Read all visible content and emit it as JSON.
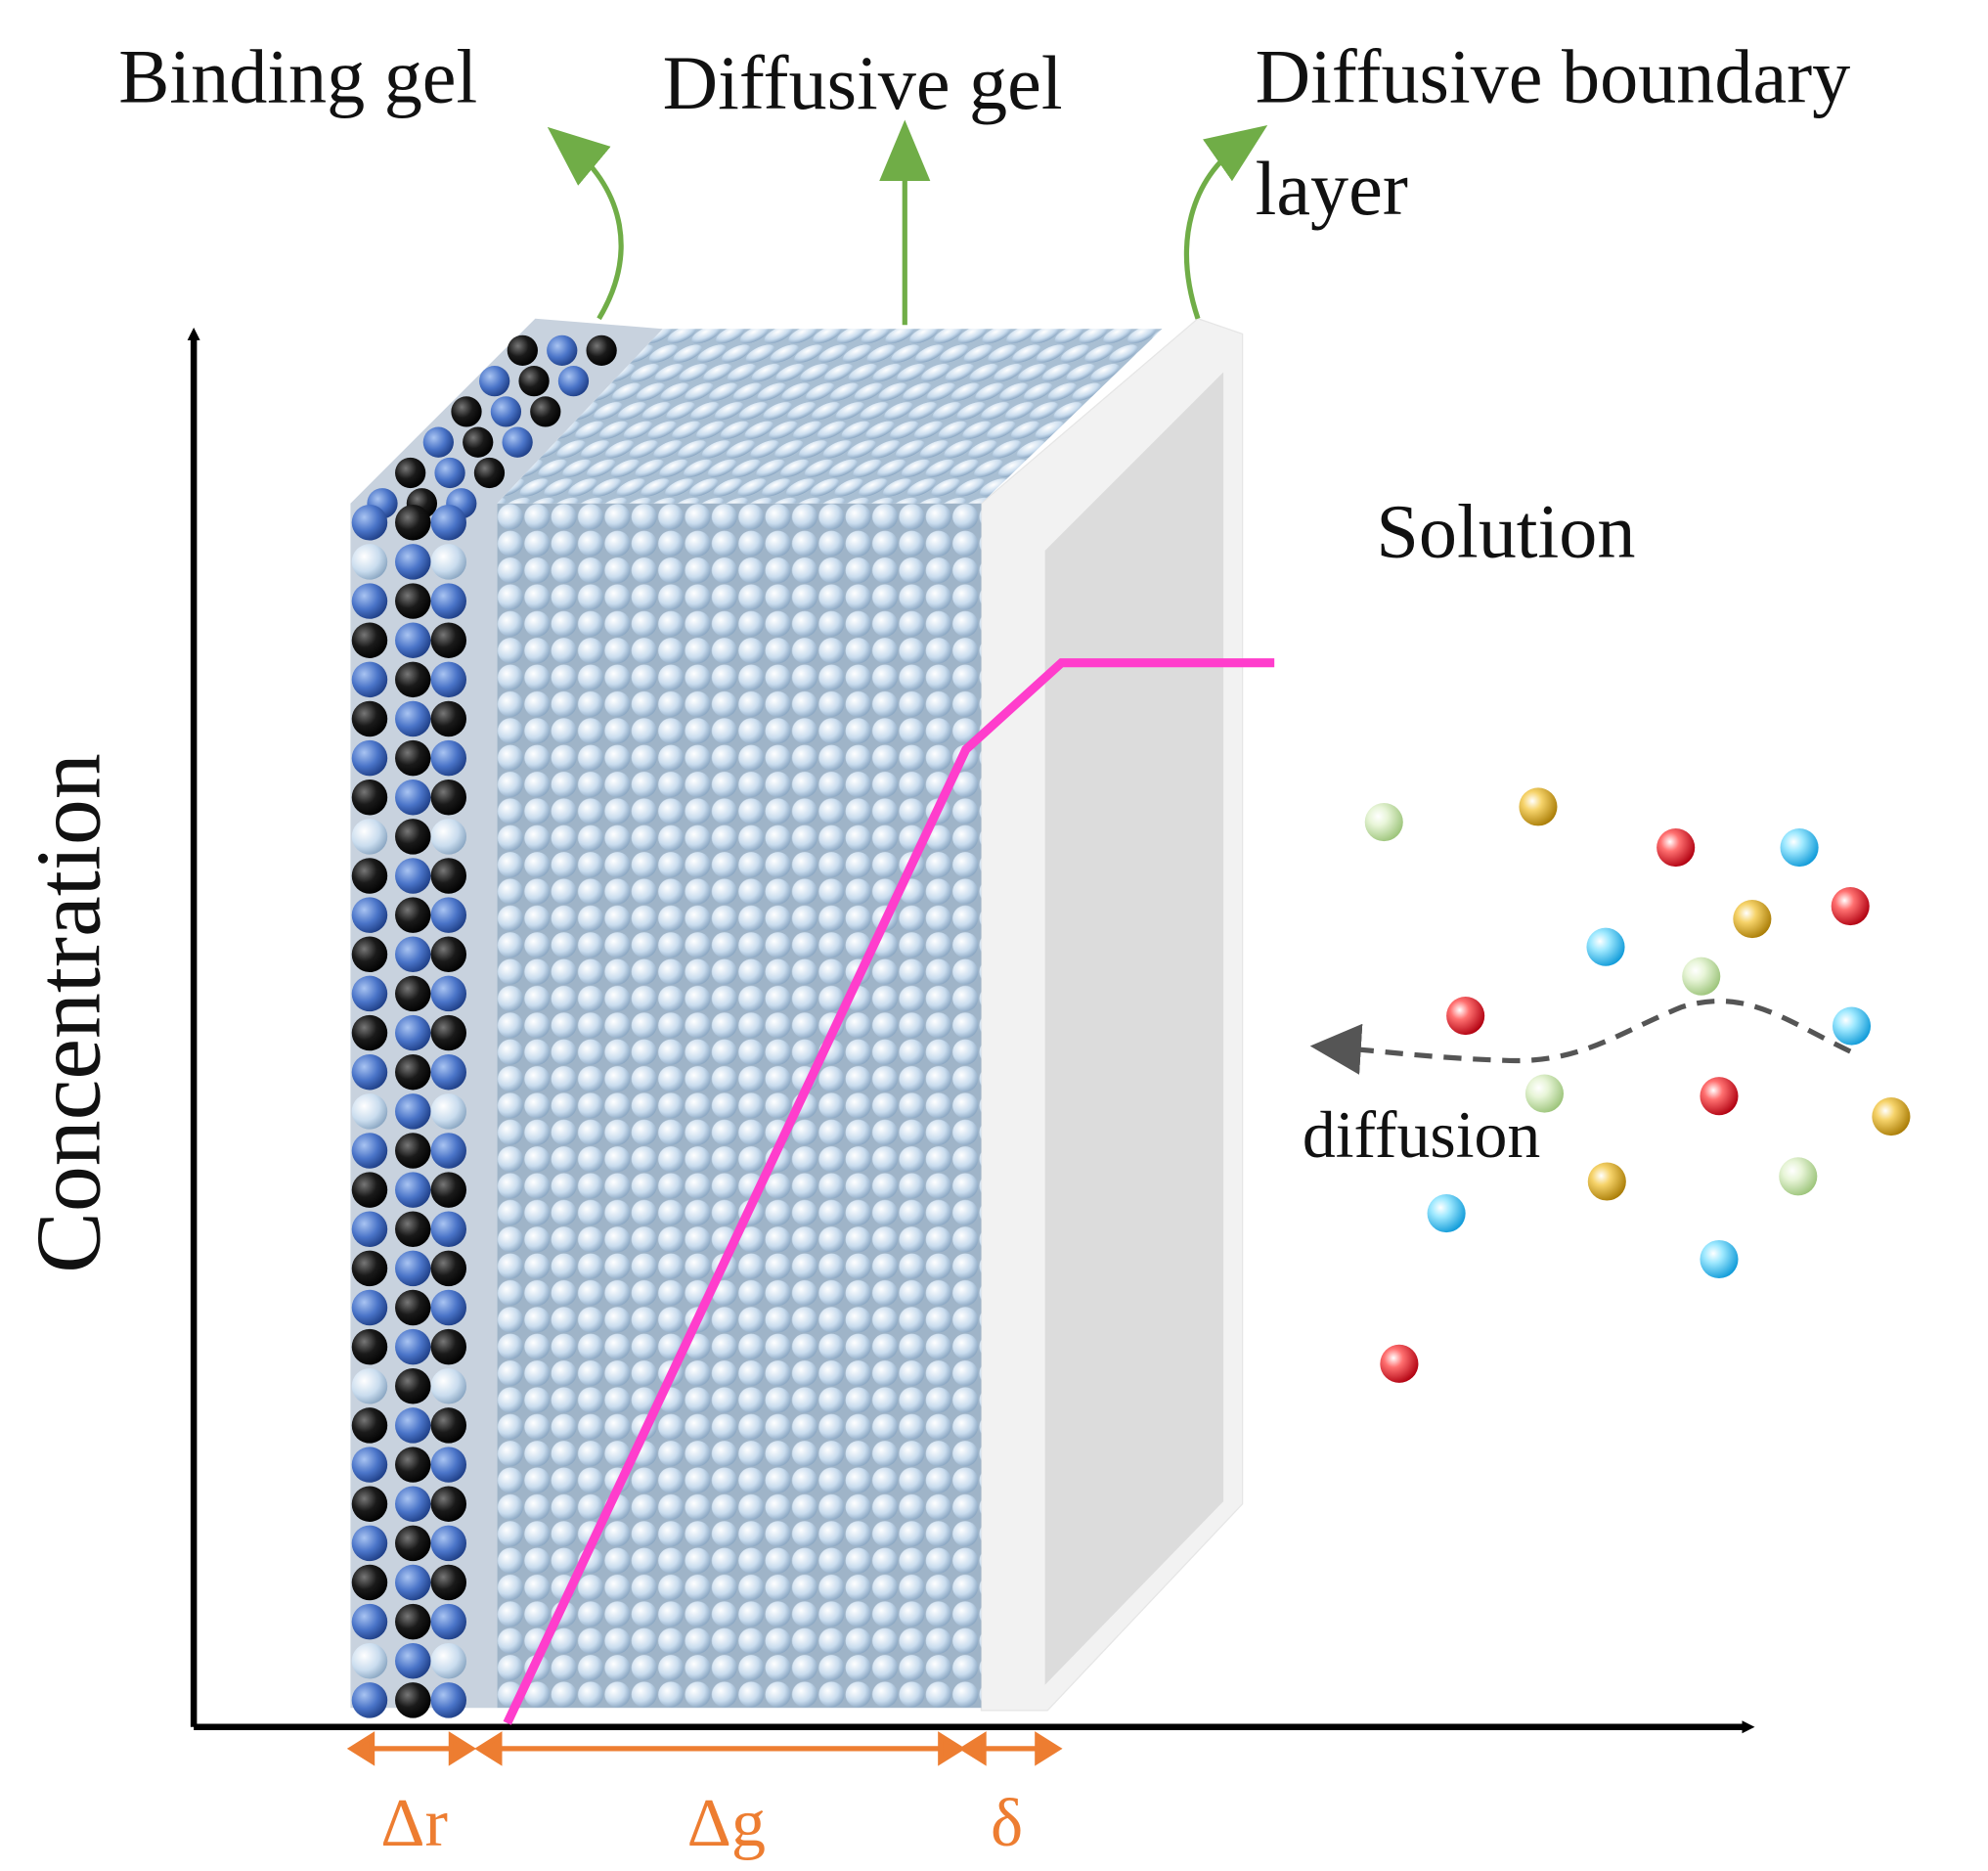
{
  "labels": {
    "binding_gel": "Binding gel",
    "diffusive_gel": "Diffusive gel",
    "boundary_line1": "Diffusive boundary",
    "boundary_line2": "layer",
    "solution": "Solution",
    "diffusion": "diffusion",
    "y_axis": "Concentration",
    "delta_r": "Δr",
    "delta_g": "Δg",
    "delta": "δ"
  }
}
